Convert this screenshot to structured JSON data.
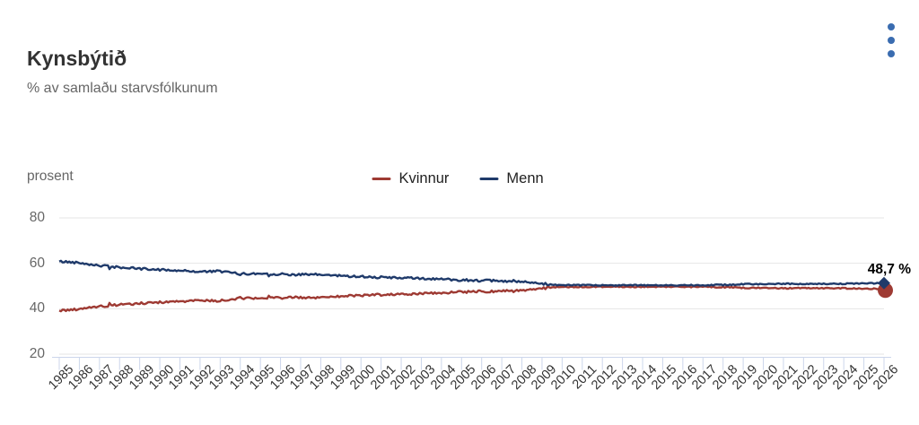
{
  "header": {
    "title": "Kynsbýtið",
    "subtitle": "% av samlaðu starvsfólkunum",
    "menu_icon": "kebab-menu-icon"
  },
  "colors": {
    "kvinnur": "#9e3a33",
    "menn": "#1f3a6a",
    "menu_dots": "#3a6cb0",
    "gridline": "#e6e6e6",
    "axis": "#ccd6eb",
    "text_muted": "#666666",
    "text_dark": "#333333"
  },
  "chart_data": {
    "type": "line",
    "title": "Kynsbýtið",
    "subtitle": "% av samlaðu starvsfólkunum",
    "ylabel": "prosent",
    "ylim": [
      20,
      80
    ],
    "yticks": [
      80,
      60,
      40,
      20
    ],
    "grid": "horizontal-only",
    "legend_position": "top-center",
    "categories": [
      "1985",
      "1986",
      "1987",
      "1988",
      "1989",
      "1990",
      "1991",
      "1992",
      "1993",
      "1994",
      "1995",
      "1996",
      "1997",
      "1998",
      "1999",
      "2000",
      "2001",
      "2002",
      "2003",
      "2004",
      "2005",
      "2006",
      "2007",
      "2008",
      "2009",
      "2010",
      "2011",
      "2012",
      "2013",
      "2014",
      "2015",
      "2016",
      "2017",
      "2018",
      "2019",
      "2020",
      "2021",
      "2022",
      "2023",
      "2024",
      "2025",
      "2026"
    ],
    "series": [
      {
        "name": "Kvinnur",
        "color": "#9e3a33",
        "end_marker": "circle",
        "values": [
          39.2,
          39.7,
          41.0,
          41.8,
          42.4,
          42.8,
          43.2,
          43.7,
          43.5,
          44.7,
          44.5,
          44.8,
          45.0,
          45.0,
          45.5,
          45.8,
          46.2,
          46.4,
          46.7,
          47.0,
          47.3,
          47.6,
          47.8,
          48.2,
          49.2,
          49.6,
          49.7,
          49.7,
          49.6,
          49.7,
          49.7,
          49.6,
          49.6,
          49.5,
          49.2,
          49.1,
          49.0,
          49.1,
          49.1,
          49.0,
          48.9,
          48.7
        ]
      },
      {
        "name": "Menn",
        "color": "#1f3a6a",
        "end_marker": "diamond",
        "values": [
          60.8,
          60.3,
          59.0,
          58.2,
          57.6,
          57.2,
          56.8,
          56.3,
          56.5,
          55.3,
          55.5,
          55.2,
          55.0,
          55.0,
          54.5,
          54.2,
          53.8,
          53.6,
          53.3,
          53.0,
          52.7,
          52.4,
          52.2,
          51.8,
          50.8,
          50.4,
          50.3,
          50.3,
          50.4,
          50.3,
          50.3,
          50.4,
          50.4,
          50.5,
          50.8,
          50.9,
          51.0,
          50.9,
          50.9,
          51.0,
          51.1,
          51.3
        ]
      }
    ],
    "annotation": {
      "text": "48,7 %",
      "series": "Kvinnur",
      "year": "2026",
      "value": 48.7
    }
  }
}
